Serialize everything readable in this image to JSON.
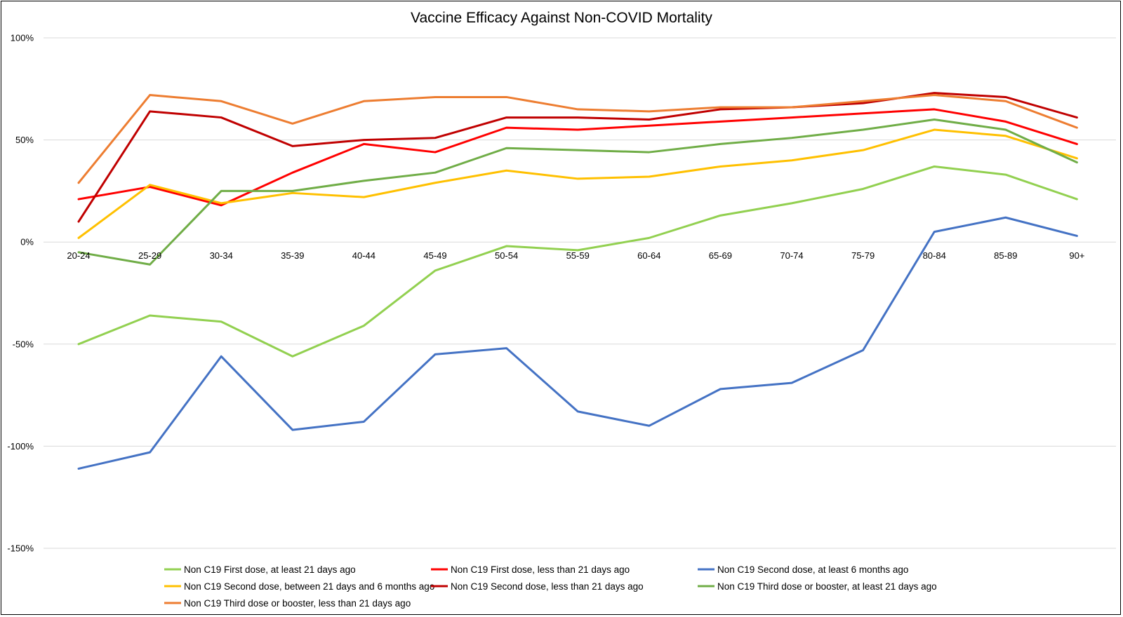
{
  "chart_data": {
    "type": "line",
    "title": "Vaccine Efficacy Against Non-COVID Mortality",
    "xlabel": "",
    "ylabel": "",
    "ylim": [
      -150,
      100
    ],
    "y_ticks": [
      100,
      50,
      0,
      -50,
      -100,
      -150
    ],
    "y_tick_labels": [
      "100%",
      "50%",
      "0%",
      "-50%",
      "-100%",
      "-150%"
    ],
    "grid": true,
    "legend_position": "bottom",
    "categories": [
      "20-24",
      "25-29",
      "30-34",
      "35-39",
      "40-44",
      "45-49",
      "50-54",
      "55-59",
      "60-64",
      "65-69",
      "70-74",
      "75-79",
      "80-84",
      "85-89",
      "90+"
    ],
    "series": [
      {
        "name": "Non C19 First dose, at least 21 days ago",
        "color": "#92d050",
        "values": [
          -50,
          -36,
          -39,
          -56,
          -41,
          -14,
          -2,
          -4,
          2,
          13,
          19,
          26,
          37,
          33,
          21
        ]
      },
      {
        "name": "Non C19 First dose, less than 21 days ago",
        "color": "#ff0000",
        "values": [
          21,
          27,
          18,
          34,
          48,
          44,
          56,
          55,
          57,
          59,
          61,
          63,
          65,
          59,
          48
        ]
      },
      {
        "name": "Non C19 Second dose, at least 6 months ago",
        "color": "#4472c4",
        "values": [
          -111,
          -103,
          -56,
          -92,
          -88,
          -55,
          -52,
          -83,
          -90,
          -72,
          -69,
          -53,
          5,
          12,
          3
        ]
      },
      {
        "name": "Non C19 Second dose, between 21 days and 6 months ago",
        "color": "#ffc000",
        "values": [
          2,
          28,
          19,
          24,
          22,
          29,
          35,
          31,
          32,
          37,
          40,
          45,
          55,
          52,
          41
        ]
      },
      {
        "name": "Non C19 Second dose, less than 21 days ago",
        "color": "#c00000",
        "values": [
          10,
          64,
          61,
          47,
          50,
          51,
          61,
          61,
          60,
          65,
          66,
          68,
          73,
          71,
          61
        ]
      },
      {
        "name": "Non C19 Third dose or booster, at least 21 days ago",
        "color": "#70ad47",
        "values": [
          -5,
          -11,
          25,
          25,
          30,
          34,
          46,
          45,
          44,
          48,
          51,
          55,
          60,
          55,
          39
        ]
      },
      {
        "name": "Non C19 Third dose or booster, less than 21 days ago",
        "color": "#ed7d31",
        "values": [
          29,
          72,
          69,
          58,
          69,
          71,
          71,
          65,
          64,
          66,
          66,
          69,
          72,
          69,
          56
        ]
      }
    ]
  }
}
